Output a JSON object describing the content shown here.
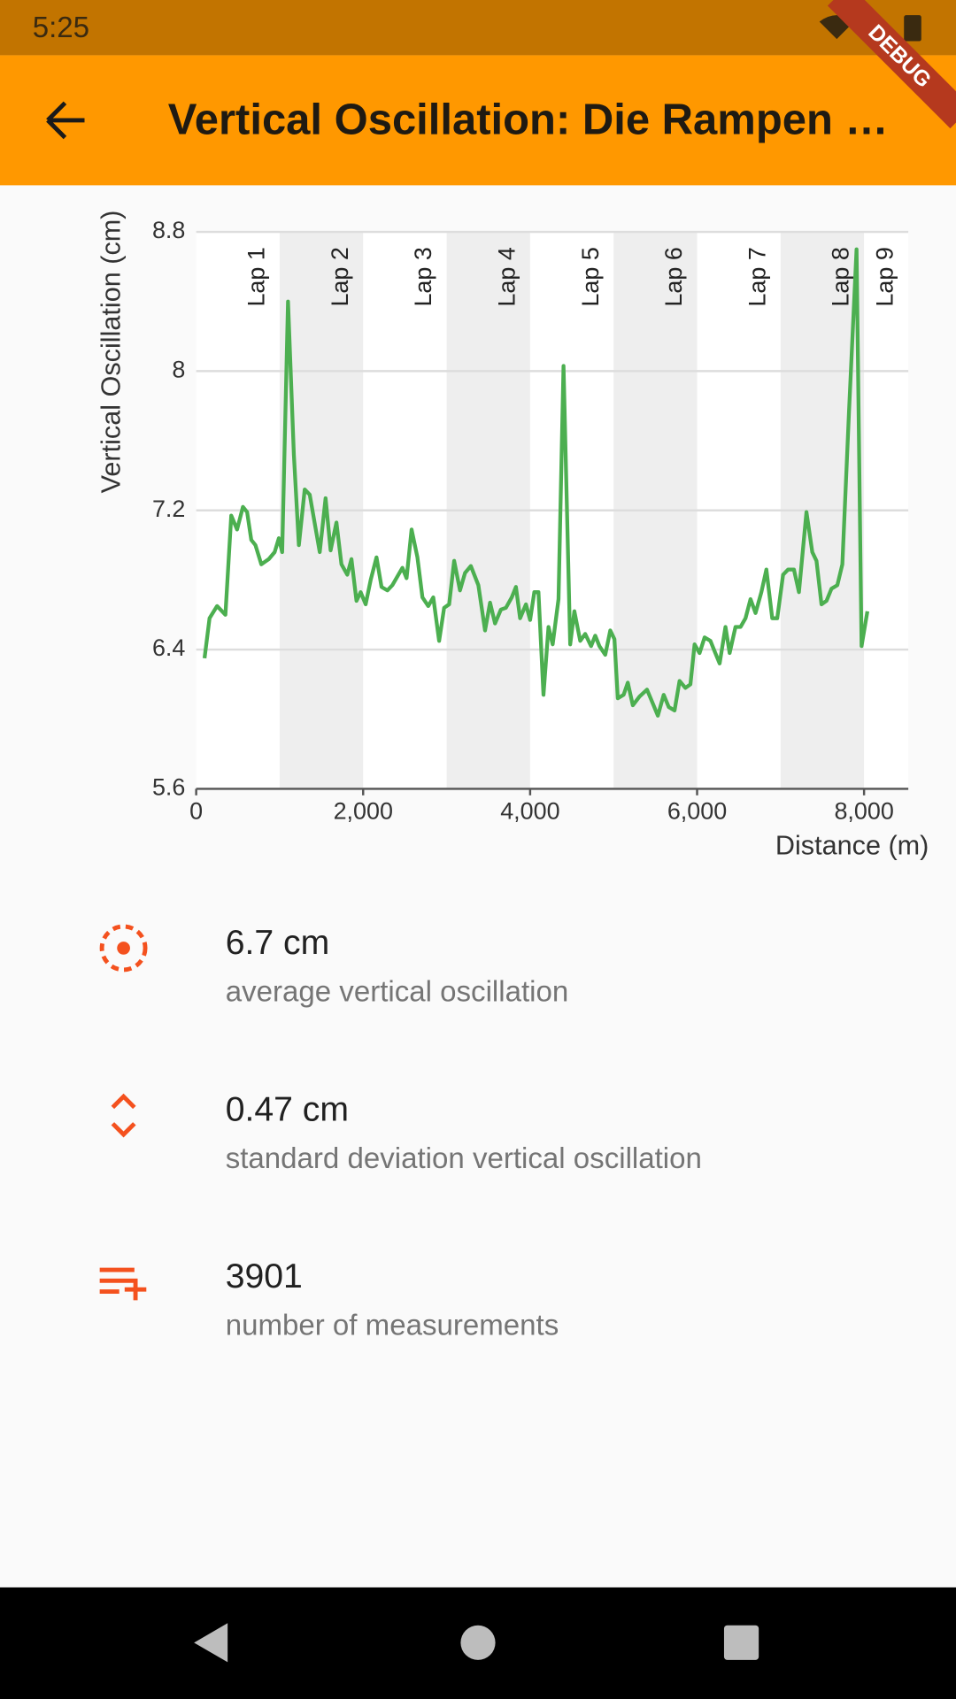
{
  "status_time": "5:25",
  "app_bar_title": "Vertical Oscillation: Die Rampen …",
  "debug_banner": "DEBUG",
  "stats": [
    {
      "value": "6.7 cm",
      "label": "average vertical oscillation"
    },
    {
      "value": "0.47 cm",
      "label": "standard deviation vertical oscillation"
    },
    {
      "value": "3901",
      "label": "number of measurements"
    }
  ],
  "chart_data": {
    "type": "line",
    "x_label": "Distance (m)",
    "y_label": "Vertical Oscillation (cm)",
    "xlim": [
      0,
      8530
    ],
    "ylim": [
      5.6,
      8.8
    ],
    "xticks": [
      0,
      {
        "value": 2000,
        "label": "2,000"
      },
      {
        "value": 4000,
        "label": "4,000"
      },
      {
        "value": 6000,
        "label": "6,000"
      },
      {
        "value": 8000,
        "label": "8,000"
      }
    ],
    "yticks": [
      5.6,
      6.4,
      7.2,
      8,
      8.8
    ],
    "grid": true,
    "lap_colors": [
      "#ffffff",
      "#eeeeee"
    ],
    "laps": [
      {
        "label": "Lap 1",
        "start": 0,
        "end": 1000
      },
      {
        "label": "Lap 2",
        "start": 1000,
        "end": 2000
      },
      {
        "label": "Lap 3",
        "start": 2000,
        "end": 3000
      },
      {
        "label": "Lap 4",
        "start": 3000,
        "end": 4000
      },
      {
        "label": "Lap 5",
        "start": 4000,
        "end": 5000
      },
      {
        "label": "Lap 6",
        "start": 5000,
        "end": 6000
      },
      {
        "label": "Lap 7",
        "start": 6000,
        "end": 7000
      },
      {
        "label": "Lap 8",
        "start": 7000,
        "end": 8000
      },
      {
        "label": "Lap 9",
        "start": 8000,
        "end": 8530
      }
    ],
    "x": [
      100,
      160,
      250,
      350,
      420,
      490,
      560,
      610,
      660,
      710,
      780,
      870,
      940,
      990,
      1030,
      1100,
      1170,
      1230,
      1300,
      1360,
      1480,
      1550,
      1610,
      1680,
      1740,
      1810,
      1860,
      1920,
      1970,
      2030,
      2090,
      2160,
      2220,
      2290,
      2350,
      2470,
      2520,
      2580,
      2650,
      2710,
      2780,
      2840,
      2910,
      2970,
      3030,
      3090,
      3160,
      3220,
      3290,
      3380,
      3460,
      3520,
      3580,
      3650,
      3710,
      3780,
      3830,
      3880,
      3950,
      4000,
      4050,
      4100,
      4160,
      4220,
      4270,
      4340,
      4400,
      4480,
      4530,
      4600,
      4660,
      4730,
      4780,
      4830,
      4900,
      4960,
      5010,
      5050,
      5120,
      5170,
      5230,
      5310,
      5400,
      5470,
      5530,
      5600,
      5660,
      5730,
      5790,
      5860,
      5920,
      5970,
      6030,
      6090,
      6160,
      6210,
      6270,
      6340,
      6390,
      6460,
      6520,
      6580,
      6640,
      6700,
      6770,
      6830,
      6900,
      6960,
      7030,
      7090,
      7160,
      7220,
      7310,
      7380,
      7430,
      7490,
      7550,
      7610,
      7680,
      7740,
      7820,
      7910,
      7970,
      8040
    ],
    "series": [
      {
        "color": "#4caf50",
        "values": [
          6.35,
          6.58,
          6.65,
          6.6,
          7.17,
          7.09,
          7.22,
          7.19,
          7.03,
          7.0,
          6.89,
          6.92,
          6.96,
          7.04,
          6.96,
          8.4,
          7.52,
          7.0,
          7.32,
          7.29,
          6.96,
          7.27,
          6.97,
          7.13,
          6.89,
          6.83,
          6.92,
          6.68,
          6.73,
          6.66,
          6.8,
          6.93,
          6.76,
          6.74,
          6.77,
          6.87,
          6.81,
          7.09,
          6.93,
          6.7,
          6.65,
          6.7,
          6.45,
          6.64,
          6.66,
          6.91,
          6.74,
          6.84,
          6.88,
          6.77,
          6.51,
          6.67,
          6.55,
          6.63,
          6.64,
          6.7,
          6.76,
          6.58,
          6.66,
          6.57,
          6.73,
          6.73,
          6.14,
          6.53,
          6.43,
          6.69,
          8.03,
          6.43,
          6.62,
          6.45,
          6.49,
          6.42,
          6.48,
          6.42,
          6.37,
          6.51,
          6.46,
          6.12,
          6.14,
          6.21,
          6.08,
          6.13,
          6.17,
          6.09,
          6.02,
          6.14,
          6.07,
          6.05,
          6.22,
          6.18,
          6.2,
          6.43,
          6.38,
          6.47,
          6.45,
          6.39,
          6.32,
          6.53,
          6.38,
          6.53,
          6.53,
          6.58,
          6.69,
          6.61,
          6.73,
          6.86,
          6.58,
          6.58,
          6.83,
          6.86,
          6.86,
          6.73,
          7.19,
          6.96,
          6.91,
          6.66,
          6.68,
          6.75,
          6.77,
          6.89,
          7.77,
          8.7,
          6.42,
          6.62
        ]
      }
    ]
  }
}
